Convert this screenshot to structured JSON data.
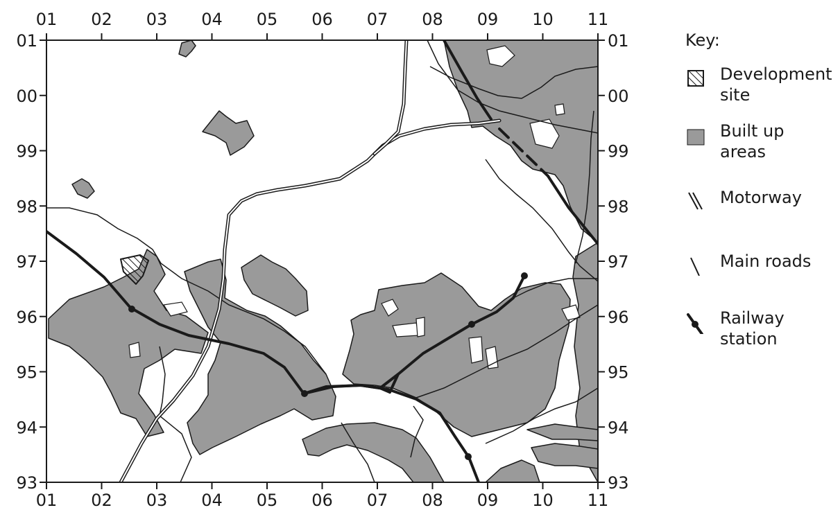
{
  "map": {
    "grid_labels": {
      "easting": [
        "01",
        "02",
        "03",
        "04",
        "05",
        "06",
        "07",
        "08",
        "09",
        "10",
        "11"
      ],
      "northing": [
        "01",
        "00",
        "99",
        "98",
        "97",
        "96",
        "95",
        "94",
        "93"
      ]
    },
    "colors": {
      "built_up": "#9a9a9a",
      "outline": "#1a1a1a",
      "background": "#ffffff"
    }
  },
  "legend": {
    "title": "Key:",
    "items": [
      {
        "label_line1": "Development",
        "label_line2": "site",
        "icon": "hatched-square-icon"
      },
      {
        "label_line1": "Built up",
        "label_line2": "areas",
        "icon": "grey-square-icon"
      },
      {
        "label_line1": "Motorway",
        "label_line2": "",
        "icon": "double-line-icon"
      },
      {
        "label_line1": "Main roads",
        "label_line2": "",
        "icon": "single-line-icon"
      },
      {
        "label_line1": "Railway",
        "label_line2": "station",
        "icon": "railway-station-icon"
      }
    ]
  }
}
